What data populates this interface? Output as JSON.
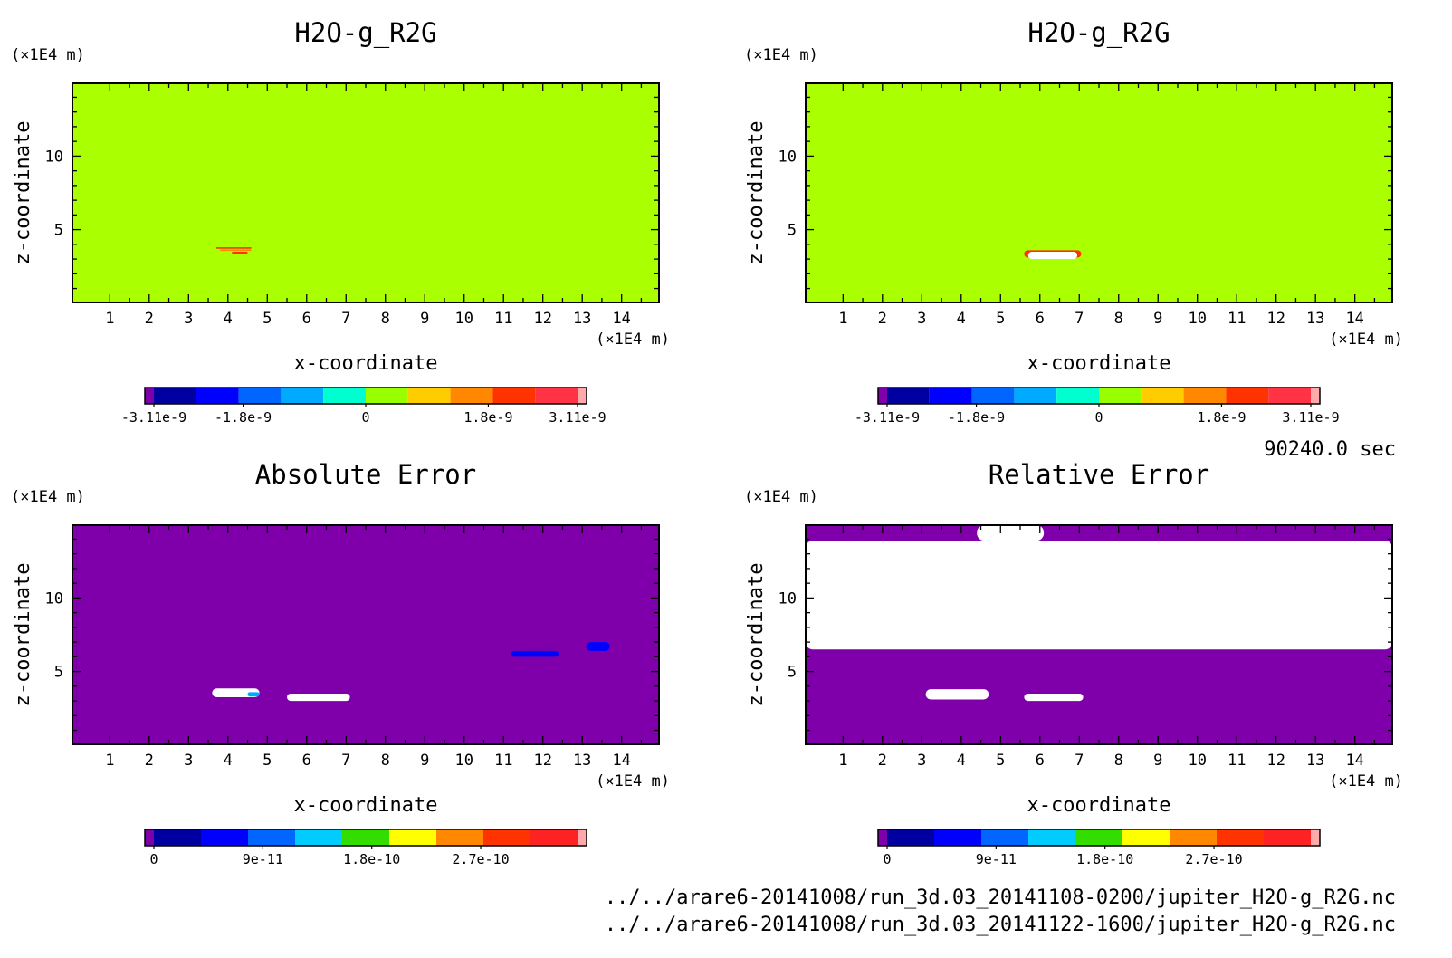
{
  "footer": {
    "time_label": "90240.0 sec",
    "file_1": "../../arare6-20141008/run_3d.03_20141108-0200/jupiter_H2O-g_R2G.nc",
    "file_2": "../../arare6-20141008/run_3d.03_20141122-1600/jupiter_H2O-g_R2G.nc"
  },
  "chart_data": [
    {
      "type": "heatmap",
      "title": "H2O-g_R2G",
      "xlabel": "x-coordinate",
      "ylabel": "z-coordinate",
      "x_unit": "(×1E4 m)",
      "y_unit": "(×1E4 m)",
      "xlim": [
        0.05,
        14.95
      ],
      "ylim": [
        0.05,
        14.95
      ],
      "x_ticks": [
        "1",
        "2",
        "3",
        "4",
        "5",
        "6",
        "7",
        "8",
        "9",
        "10",
        "11",
        "12",
        "13",
        "14"
      ],
      "y_ticks": [
        "5",
        "10"
      ],
      "background_color": "#aaff00",
      "colorbar": {
        "colors": [
          "#7f00aa",
          "#0000a0",
          "#0000ff",
          "#0066ff",
          "#00aaff",
          "#00ffd0",
          "#99ff00",
          "#ffcc00",
          "#ff8800",
          "#ff3300",
          "#ff3344",
          "#ffaaaa"
        ],
        "tick_labels": [
          "-3.11e-9",
          "-1.8e-9",
          "0",
          "1.8e-9",
          "3.11e-9"
        ],
        "tick_values": [
          -3.11e-09,
          -1.8e-09,
          0,
          1.8e-09,
          3.11e-09
        ],
        "range": [
          -3.11e-09,
          3.11e-09
        ]
      },
      "features": [
        {
          "x": [
            3.7,
            4.6
          ],
          "z": [
            3.7,
            3.8
          ],
          "color": "#ff3300"
        },
        {
          "x": [
            3.8,
            4.6
          ],
          "z": [
            3.55,
            3.65
          ],
          "color": "#ff8800"
        },
        {
          "x": [
            4.1,
            4.5
          ],
          "z": [
            3.35,
            3.5
          ],
          "color": "#ff3300"
        }
      ]
    },
    {
      "type": "heatmap",
      "title": "H2O-g_R2G",
      "xlabel": "x-coordinate",
      "ylabel": "z-coordinate",
      "x_unit": "(×1E4 m)",
      "y_unit": "(×1E4 m)",
      "xlim": [
        0.05,
        14.95
      ],
      "ylim": [
        0.05,
        14.95
      ],
      "x_ticks": [
        "1",
        "2",
        "3",
        "4",
        "5",
        "6",
        "7",
        "8",
        "9",
        "10",
        "11",
        "12",
        "13",
        "14"
      ],
      "y_ticks": [
        "5",
        "10"
      ],
      "background_color": "#aaff00",
      "colorbar": {
        "colors": [
          "#7f00aa",
          "#0000a0",
          "#0000ff",
          "#0066ff",
          "#00aaff",
          "#00ffd0",
          "#99ff00",
          "#ffcc00",
          "#ff8800",
          "#ff3300",
          "#ff3344",
          "#ffaaaa"
        ],
        "tick_labels": [
          "-3.11e-9",
          "-1.8e-9",
          "0",
          "1.8e-9",
          "3.11e-9"
        ],
        "tick_values": [
          -3.11e-09,
          -1.8e-09,
          0,
          1.8e-09,
          3.11e-09
        ],
        "range": [
          -3.11e-09,
          3.11e-09
        ]
      },
      "features": [
        {
          "x": [
            5.6,
            7.05
          ],
          "z": [
            3.1,
            3.6
          ],
          "color": "#ff3300"
        },
        {
          "x": [
            5.7,
            6.95
          ],
          "z": [
            3.0,
            3.5
          ],
          "color": "#ffffff"
        }
      ]
    },
    {
      "type": "heatmap",
      "title": "Absolute Error",
      "xlabel": "x-coordinate",
      "ylabel": "z-coordinate",
      "x_unit": "(×1E4 m)",
      "y_unit": "(×1E4 m)",
      "xlim": [
        0.05,
        14.95
      ],
      "ylim": [
        0.05,
        14.95
      ],
      "x_ticks": [
        "1",
        "2",
        "3",
        "4",
        "5",
        "6",
        "7",
        "8",
        "9",
        "10",
        "11",
        "12",
        "13",
        "14"
      ],
      "y_ticks": [
        "5",
        "10"
      ],
      "background_color": "#7f00aa",
      "colorbar": {
        "colors": [
          "#7f00aa",
          "#0000a0",
          "#0000ff",
          "#0066ff",
          "#00ccff",
          "#33dd00",
          "#ffff00",
          "#ff8800",
          "#ff3300",
          "#ff2222",
          "#ffaaaa"
        ],
        "tick_labels": [
          "0",
          "9e-11",
          "1.8e-10",
          "2.7e-10"
        ],
        "tick_values": [
          0,
          9e-11,
          1.8e-10,
          2.7e-10
        ],
        "range": [
          0,
          3.5e-10
        ]
      },
      "features": [
        {
          "x": [
            3.6,
            4.8
          ],
          "z": [
            3.25,
            3.85
          ],
          "color": "#ffffff"
        },
        {
          "x": [
            4.5,
            4.8
          ],
          "z": [
            3.3,
            3.6
          ],
          "color": "#00aaff"
        },
        {
          "x": [
            5.5,
            7.1
          ],
          "z": [
            3.0,
            3.5
          ],
          "color": "#ffffff"
        },
        {
          "x": [
            11.2,
            12.4
          ],
          "z": [
            6.0,
            6.4
          ],
          "color": "#0000ff"
        },
        {
          "x": [
            13.1,
            13.7
          ],
          "z": [
            6.4,
            7.0
          ],
          "color": "#0000ff"
        }
      ]
    },
    {
      "type": "heatmap",
      "title": "Relative Error",
      "xlabel": "x-coordinate",
      "ylabel": "z-coordinate",
      "x_unit": "(×1E4 m)",
      "y_unit": "(×1E4 m)",
      "xlim": [
        0.05,
        14.95
      ],
      "ylim": [
        0.05,
        14.95
      ],
      "x_ticks": [
        "1",
        "2",
        "3",
        "4",
        "5",
        "6",
        "7",
        "8",
        "9",
        "10",
        "11",
        "12",
        "13",
        "14"
      ],
      "y_ticks": [
        "5",
        "10"
      ],
      "background_color": "#7f00aa",
      "colorbar": {
        "colors": [
          "#7f00aa",
          "#0000a0",
          "#0000ff",
          "#0066ff",
          "#00ccff",
          "#33dd00",
          "#ffff00",
          "#ff8800",
          "#ff3300",
          "#ff2222",
          "#ffaaaa"
        ],
        "tick_labels": [
          "0",
          "9e-11",
          "1.8e-10",
          "2.7e-10"
        ],
        "tick_values": [
          0,
          9e-11,
          1.8e-10,
          2.7e-10
        ],
        "range": [
          0,
          3.5e-10
        ]
      },
      "features": [
        {
          "x": [
            0.05,
            14.95
          ],
          "z": [
            6.5,
            13.9
          ],
          "color": "#ffffff"
        },
        {
          "x": [
            4.4,
            6.1
          ],
          "z": [
            13.9,
            14.95
          ],
          "color": "#ffffff"
        },
        {
          "x": [
            3.1,
            4.7
          ],
          "z": [
            3.1,
            3.8
          ],
          "color": "#ffffff"
        },
        {
          "x": [
            5.6,
            7.1
          ],
          "z": [
            3.0,
            3.5
          ],
          "color": "#ffffff"
        }
      ]
    }
  ]
}
